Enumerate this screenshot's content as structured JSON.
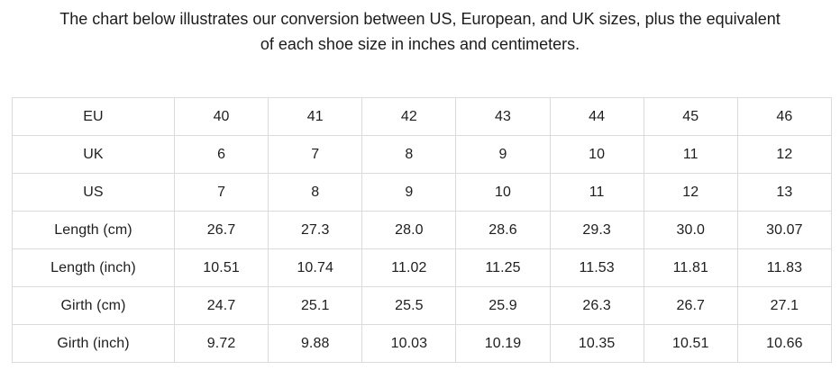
{
  "colors": {
    "background": "#ffffff",
    "text": "#1e1e1e",
    "heading_text": "#1c1c1c",
    "table_border": "#dbdbdb"
  },
  "intro": {
    "line1": "The chart below illustrates our conversion between US, European, and UK sizes, plus the equivalent",
    "line2": "of each shoe size in inches and centimeters."
  },
  "chart_data": {
    "type": "table",
    "title": "The chart below illustrates our conversion between US, European, and UK sizes, plus the equivalent of each shoe size in inches and centimeters.",
    "rows": [
      {
        "label": "EU",
        "values": [
          "40",
          "41",
          "42",
          "43",
          "44",
          "45",
          "46"
        ]
      },
      {
        "label": "UK",
        "values": [
          "6",
          "7",
          "8",
          "9",
          "10",
          "11",
          "12"
        ]
      },
      {
        "label": "US",
        "values": [
          "7",
          "8",
          "9",
          "10",
          "11",
          "12",
          "13"
        ]
      },
      {
        "label": "Length (cm)",
        "values": [
          "26.7",
          "27.3",
          "28.0",
          "28.6",
          "29.3",
          "30.0",
          "30.07"
        ]
      },
      {
        "label": "Length (inch)",
        "values": [
          "10.51",
          "10.74",
          "11.02",
          "11.25",
          "11.53",
          "11.81",
          "11.83"
        ]
      },
      {
        "label": "Girth (cm)",
        "values": [
          "24.7",
          "25.1",
          "25.5",
          "25.9",
          "26.3",
          "26.7",
          "27.1"
        ]
      },
      {
        "label": "Girth (inch)",
        "values": [
          "9.72",
          "9.88",
          "10.03",
          "10.19",
          "10.35",
          "10.51",
          "10.66"
        ]
      }
    ]
  }
}
